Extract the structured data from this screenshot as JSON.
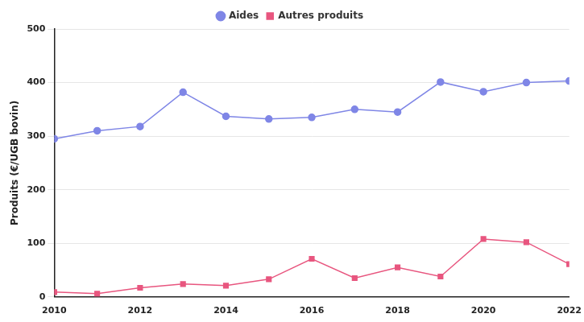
{
  "chart_data": {
    "type": "line",
    "y_label": "Produits (€/UGB bovin)",
    "x": [
      2010,
      2011,
      2012,
      2013,
      2014,
      2015,
      2016,
      2017,
      2018,
      2019,
      2020,
      2021,
      2022
    ],
    "series": [
      {
        "name": "Aides",
        "color": "#7f86e6",
        "marker": "circle",
        "values": [
          295,
          310,
          318,
          382,
          337,
          332,
          335,
          350,
          345,
          401,
          383,
          400,
          403
        ]
      },
      {
        "name": "Autres produits",
        "color": "#e8567f",
        "marker": "square",
        "values": [
          9,
          6,
          17,
          24,
          21,
          33,
          71,
          35,
          55,
          38,
          108,
          102,
          61
        ]
      }
    ],
    "xlim": [
      2010,
      2022
    ],
    "xticks": [
      2010,
      2012,
      2014,
      2016,
      2018,
      2020,
      2022
    ],
    "ylim": [
      0,
      500
    ],
    "yticks": [
      0,
      100,
      200,
      300,
      400,
      500
    ],
    "grid": true,
    "legend": "top"
  }
}
